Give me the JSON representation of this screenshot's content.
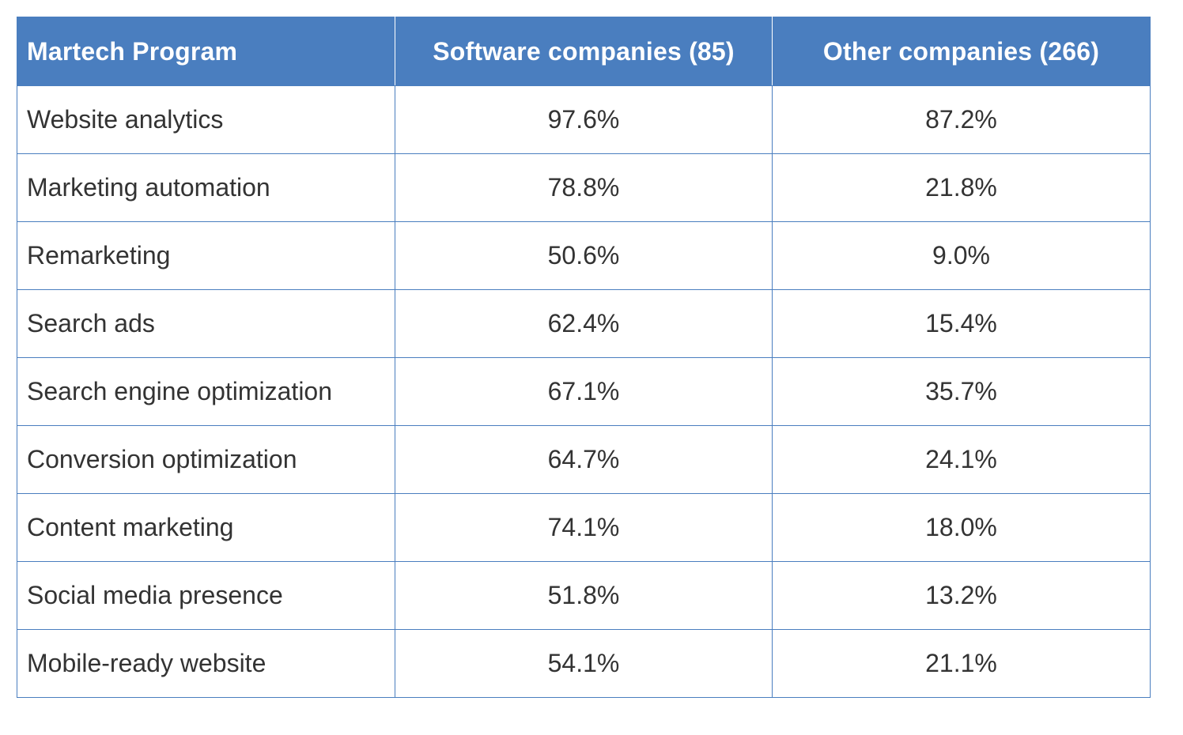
{
  "chart_data": {
    "type": "table",
    "columns": [
      "Martech Program",
      "Software companies (85)",
      "Other companies (266)"
    ],
    "rows": [
      {
        "program": "Website analytics",
        "software": "97.6%",
        "other": "87.2%"
      },
      {
        "program": "Marketing automation",
        "software": "78.8%",
        "other": "21.8%"
      },
      {
        "program": "Remarketing",
        "software": "50.6%",
        "other": "9.0%"
      },
      {
        "program": "Search ads",
        "software": "62.4%",
        "other": "15.4%"
      },
      {
        "program": "Search engine optimization",
        "software": "67.1%",
        "other": "35.7%"
      },
      {
        "program": "Conversion optimization",
        "software": "64.7%",
        "other": "24.1%"
      },
      {
        "program": "Content marketing",
        "software": "74.1%",
        "other": "18.0%"
      },
      {
        "program": "Social media presence",
        "software": "51.8%",
        "other": "13.2%"
      },
      {
        "program": "Mobile-ready website",
        "software": "54.1%",
        "other": "21.1%"
      }
    ]
  },
  "colors": {
    "header_bg": "#4a7ebf",
    "header_text": "#ffffff",
    "border": "#4a7ebf",
    "body_text": "#333333"
  }
}
